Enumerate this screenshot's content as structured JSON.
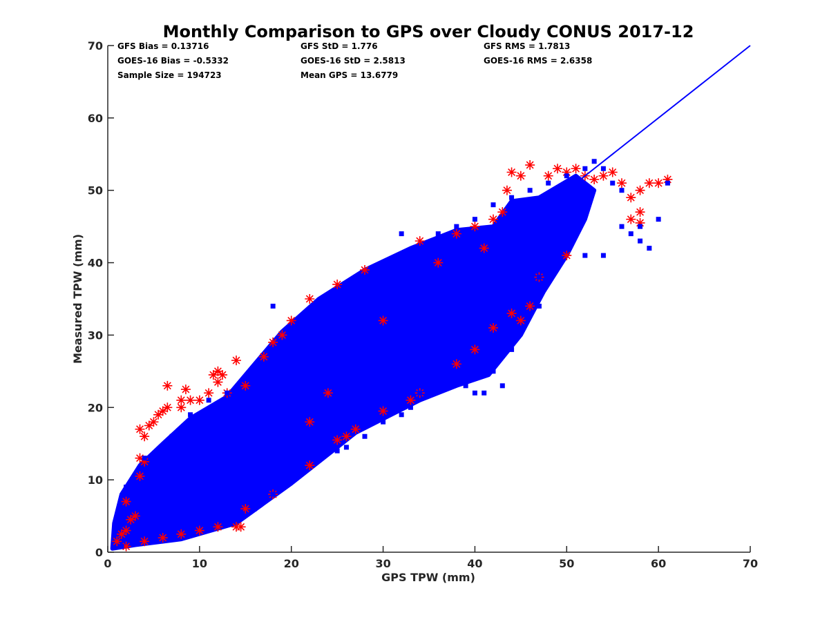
{
  "chart_data": {
    "type": "scatter",
    "title": "Monthly Comparison to GPS over Cloudy CONUS 2017-12",
    "xlabel": "GPS TPW (mm)",
    "ylabel": "Measured TPW (mm)",
    "xlim": [
      0,
      70
    ],
    "ylim": [
      0,
      70
    ],
    "xticks": [
      0,
      10,
      20,
      30,
      40,
      50,
      60,
      70
    ],
    "yticks": [
      0,
      10,
      20,
      30,
      40,
      50,
      60,
      70
    ],
    "grid": false,
    "series": [
      {
        "marker": "asterisk",
        "color": "#ff0000",
        "points": [
          [
            1,
            1.5
          ],
          [
            1.5,
            2.5
          ],
          [
            2,
            3
          ],
          [
            2.5,
            4.5
          ],
          [
            3,
            5
          ],
          [
            2,
            7
          ],
          [
            3.5,
            10.5
          ],
          [
            4,
            12.5
          ],
          [
            3.5,
            13
          ],
          [
            4,
            16
          ],
          [
            3.5,
            17
          ],
          [
            4.5,
            17.5
          ],
          [
            5,
            18
          ],
          [
            5.5,
            19
          ],
          [
            6,
            19.5
          ],
          [
            6.5,
            20
          ],
          [
            6.5,
            23
          ],
          [
            8,
            20
          ],
          [
            8.5,
            22.5
          ],
          [
            8,
            21
          ],
          [
            9,
            21
          ],
          [
            10,
            21
          ],
          [
            11,
            22
          ],
          [
            11.5,
            24.5
          ],
          [
            12,
            25
          ],
          [
            12.5,
            24.5
          ],
          [
            12,
            23.5
          ],
          [
            13,
            22
          ],
          [
            14,
            26.5
          ],
          [
            15,
            23
          ],
          [
            17,
            27
          ],
          [
            18,
            29
          ],
          [
            19,
            30
          ],
          [
            20,
            32
          ],
          [
            22,
            35
          ],
          [
            25,
            37
          ],
          [
            28,
            39
          ],
          [
            34,
            43
          ],
          [
            38,
            44
          ],
          [
            40,
            45
          ],
          [
            42,
            46
          ],
          [
            43,
            47
          ],
          [
            43.5,
            50
          ],
          [
            44,
            52.5
          ],
          [
            45,
            52
          ],
          [
            46,
            53.5
          ],
          [
            48,
            52
          ],
          [
            49,
            53
          ],
          [
            50,
            52.5
          ],
          [
            51,
            53
          ],
          [
            52,
            52
          ],
          [
            53,
            51.5
          ],
          [
            54,
            52
          ],
          [
            55,
            52.5
          ],
          [
            56,
            51
          ],
          [
            57,
            49
          ],
          [
            58,
            47
          ],
          [
            58,
            50
          ],
          [
            59,
            51
          ],
          [
            60,
            51
          ],
          [
            61,
            51.5
          ],
          [
            58,
            45.5
          ],
          [
            57,
            46
          ],
          [
            50,
            41
          ],
          [
            47,
            38
          ],
          [
            46,
            34
          ],
          [
            45,
            32
          ],
          [
            44,
            33
          ],
          [
            42,
            31
          ],
          [
            40,
            28
          ],
          [
            38,
            26
          ],
          [
            34,
            22
          ],
          [
            33,
            21
          ],
          [
            30,
            19.5
          ],
          [
            27,
            17
          ],
          [
            26,
            16
          ],
          [
            25,
            15.5
          ],
          [
            22,
            12
          ],
          [
            18,
            8
          ],
          [
            15,
            6
          ],
          [
            14.5,
            3.5
          ],
          [
            14,
            3.5
          ],
          [
            12,
            3.5
          ],
          [
            10,
            3
          ],
          [
            8,
            2.5
          ],
          [
            6,
            2
          ],
          [
            4,
            1.5
          ],
          [
            2,
            0.8
          ],
          [
            22,
            18
          ],
          [
            24,
            22
          ],
          [
            30,
            32
          ],
          [
            36,
            40
          ],
          [
            41,
            42
          ]
        ]
      },
      {
        "marker": "square",
        "color": "#0000ff",
        "points": [
          [
            2,
            9
          ],
          [
            4,
            13
          ],
          [
            7,
            16
          ],
          [
            9,
            19
          ],
          [
            11,
            21
          ],
          [
            13,
            22
          ],
          [
            15,
            24
          ],
          [
            17,
            26
          ],
          [
            18,
            34
          ],
          [
            20,
            31
          ],
          [
            22,
            33
          ],
          [
            24,
            35
          ],
          [
            26,
            37
          ],
          [
            28,
            38
          ],
          [
            30,
            40
          ],
          [
            32,
            44
          ],
          [
            34,
            42
          ],
          [
            36,
            44
          ],
          [
            38,
            45
          ],
          [
            40,
            46
          ],
          [
            42,
            48
          ],
          [
            44,
            49
          ],
          [
            46,
            50
          ],
          [
            48,
            51
          ],
          [
            50,
            52
          ],
          [
            52,
            53
          ],
          [
            53,
            54
          ],
          [
            54,
            53
          ],
          [
            55,
            51
          ],
          [
            56,
            50
          ],
          [
            57,
            44
          ],
          [
            58,
            43
          ],
          [
            59,
            42
          ],
          [
            60,
            46
          ],
          [
            61,
            51
          ],
          [
            58,
            45
          ],
          [
            56,
            45
          ],
          [
            54,
            41
          ],
          [
            52,
            41
          ],
          [
            50,
            42
          ],
          [
            48,
            40
          ],
          [
            47,
            38
          ],
          [
            46,
            35
          ],
          [
            45,
            31
          ],
          [
            44,
            28
          ],
          [
            43,
            23
          ],
          [
            42,
            25
          ],
          [
            41,
            22
          ],
          [
            40,
            22
          ],
          [
            39,
            23
          ],
          [
            38,
            25
          ],
          [
            37,
            24
          ],
          [
            36,
            23
          ],
          [
            35,
            23
          ],
          [
            34,
            22
          ],
          [
            33,
            20
          ],
          [
            32,
            19
          ],
          [
            30,
            18
          ],
          [
            28,
            16
          ],
          [
            26,
            14.5
          ],
          [
            25,
            14
          ],
          [
            23,
            13
          ],
          [
            22,
            15
          ],
          [
            20,
            11
          ],
          [
            18,
            8
          ],
          [
            16,
            6
          ],
          [
            14.5,
            5.5
          ],
          [
            13,
            4
          ],
          [
            11,
            3.5
          ],
          [
            9,
            3
          ],
          [
            7,
            2
          ],
          [
            5,
            1.5
          ],
          [
            3,
            1.2
          ],
          [
            1.5,
            0.8
          ],
          [
            30,
            23
          ],
          [
            35,
            28
          ],
          [
            25,
            20
          ],
          [
            45,
            36
          ],
          [
            47,
            34
          ],
          [
            19,
            13
          ],
          [
            21,
            12
          ],
          [
            24,
            21
          ],
          [
            27,
            25
          ],
          [
            29,
            24
          ],
          [
            31,
            27
          ],
          [
            33,
            30
          ],
          [
            37,
            33
          ],
          [
            39,
            35
          ],
          [
            41,
            37
          ],
          [
            43,
            41
          ],
          [
            16,
            20
          ],
          [
            12,
            15
          ],
          [
            10,
            12
          ],
          [
            8,
            9
          ],
          [
            6,
            7
          ],
          [
            15,
            17
          ],
          [
            20,
            22
          ],
          [
            25,
            28
          ],
          [
            35,
            36
          ]
        ]
      }
    ],
    "fit_line": {
      "color": "#0000ff",
      "x": [
        27.8,
        52,
        55.3,
        70
      ],
      "y": [
        27.8,
        52,
        55.3,
        70
      ]
    },
    "annotations": [
      [
        "GFS Bias = 0.13716",
        "GFS StD = 1.776",
        "GFS RMS = 1.7813"
      ],
      [
        "GOES-16 Bias = -0.5332",
        "GOES-16 StD = 2.5813",
        "GOES-16 RMS = 2.6358"
      ],
      [
        "Sample Size = 194723",
        "Mean GPS = 13.6779",
        ""
      ]
    ]
  },
  "colors": {
    "obs": "#ff0000",
    "model": "#0000ff",
    "axis": "#262626"
  }
}
